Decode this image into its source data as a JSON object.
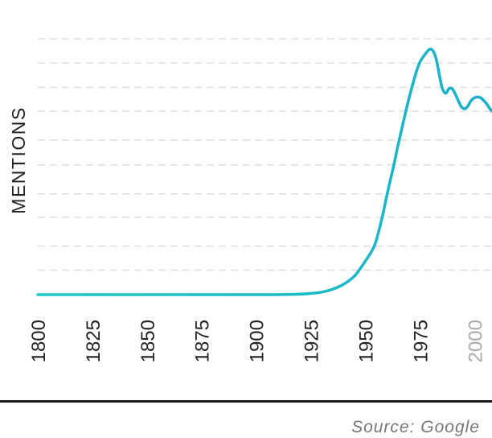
{
  "chart_data": {
    "type": "line",
    "title": "",
    "xlabel": "",
    "ylabel": "MENTIONS",
    "source": "Source: Google",
    "xlim": [
      1800,
      2008
    ],
    "ylim": [
      0,
      100
    ],
    "grid": true,
    "x_ticks": [
      {
        "value": 1800,
        "label": "1800",
        "color": "#222222"
      },
      {
        "value": 1825,
        "label": "1825",
        "color": "#222222"
      },
      {
        "value": 1850,
        "label": "1850",
        "color": "#222222"
      },
      {
        "value": 1875,
        "label": "1875",
        "color": "#222222"
      },
      {
        "value": 1900,
        "label": "1900",
        "color": "#222222"
      },
      {
        "value": 1925,
        "label": "1925",
        "color": "#222222"
      },
      {
        "value": 1950,
        "label": "1950",
        "color": "#222222"
      },
      {
        "value": 1975,
        "label": "1975",
        "color": "#222222"
      },
      {
        "value": 2000,
        "label": "2000",
        "color": "#aaaaaa"
      }
    ],
    "gridlines": [
      9.5,
      18.8,
      30.0,
      39.0,
      50.2,
      59.8,
      71.0,
      80.2,
      89.6,
      99.0
    ],
    "series": [
      {
        "color_start": "#1cc9c0",
        "color_end": "#1ab0cc",
        "x": [
          1800,
          1900,
          1910,
          1920,
          1925,
          1930,
          1935,
          1940,
          1945,
          1948,
          1950,
          1953,
          1955,
          1958,
          1960,
          1963,
          1965,
          1968,
          1970,
          1973,
          1975,
          1977,
          1979,
          1980,
          1981,
          1982,
          1983,
          1984,
          1985,
          1986,
          1987,
          1988,
          1989,
          1990,
          1991,
          1992,
          1993,
          1994,
          1995,
          1996,
          1997,
          1998,
          1999,
          2000,
          2001,
          2002,
          2003,
          2004,
          2005,
          2006,
          2007,
          2008
        ],
        "y": [
          0,
          0,
          0.05,
          0.2,
          0.5,
          1.0,
          2.1,
          4.0,
          7.2,
          10.5,
          13.0,
          17.0,
          21.0,
          31.0,
          39.0,
          50.0,
          58.0,
          69.0,
          76.0,
          85.3,
          90.0,
          92.6,
          94.7,
          95.0,
          94.3,
          92.5,
          89.0,
          84.5,
          80.5,
          78.5,
          78.0,
          79.4,
          80.0,
          79.4,
          78.0,
          76.1,
          74.2,
          72.7,
          72.0,
          72.1,
          73.0,
          74.5,
          75.6,
          76.2,
          76.5,
          76.4,
          76.1,
          75.3,
          74.4,
          73.3,
          72.0,
          71.0
        ]
      }
    ]
  }
}
